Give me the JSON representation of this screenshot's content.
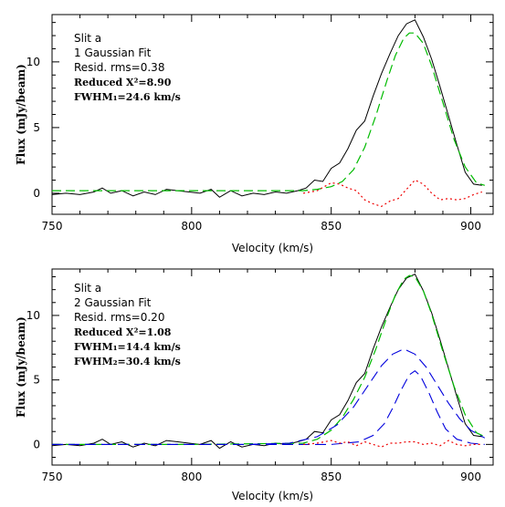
{
  "colors": {
    "data": "#000000",
    "fit_total": "#00bb00",
    "component": "#0000dd",
    "residual": "#ee0000",
    "axis": "#000000"
  },
  "chart_data": [
    {
      "type": "line",
      "xlabel": "Velocity (km/s)",
      "ylabel": "Flux (mJy/beam)",
      "xlim": [
        750,
        908
      ],
      "ylim": [
        -1.6,
        13.6
      ],
      "xticks": [
        750,
        800,
        850,
        900
      ],
      "yticks": [
        0,
        5,
        10
      ],
      "annotations": [
        "Slit a",
        "1 Gaussian Fit",
        "Resid. rms=0.38",
        "Reduced X²=8.90",
        "FWHM₁=24.6 km/s"
      ],
      "series": [
        {
          "style": "data",
          "x": [
            750,
            755,
            760,
            765,
            768,
            771,
            775,
            779,
            783,
            787,
            791,
            795,
            799,
            803,
            807,
            810,
            814,
            818,
            822,
            826,
            830,
            834,
            838,
            841,
            844,
            847,
            850,
            853,
            856,
            859,
            862,
            865,
            868,
            871,
            874,
            877,
            880,
            883,
            886,
            889,
            892,
            895,
            898,
            901,
            904
          ],
          "y": [
            -0.1,
            0.0,
            -0.1,
            0.1,
            0.4,
            0.0,
            0.2,
            -0.2,
            0.1,
            -0.1,
            0.3,
            0.2,
            0.1,
            0.0,
            0.3,
            -0.3,
            0.2,
            -0.2,
            0.0,
            -0.1,
            0.1,
            0.0,
            0.2,
            0.4,
            1.0,
            0.9,
            1.9,
            2.3,
            3.4,
            4.8,
            5.5,
            7.4,
            9.1,
            10.6,
            12.0,
            12.9,
            13.2,
            11.9,
            10.2,
            8.1,
            5.9,
            3.7,
            1.6,
            0.7,
            0.6
          ]
        },
        {
          "style": "fit_total",
          "x": [
            750,
            800,
            840,
            845,
            850,
            854,
            858,
            862,
            866,
            870,
            873,
            876,
            878,
            880,
            883,
            886,
            890,
            894,
            898,
            902,
            905
          ],
          "y": [
            0.2,
            0.2,
            0.2,
            0.3,
            0.5,
            0.9,
            1.8,
            3.5,
            5.9,
            8.6,
            10.5,
            11.8,
            12.2,
            12.2,
            11.4,
            9.7,
            6.9,
            4.1,
            2.0,
            0.8,
            0.6
          ]
        },
        {
          "style": "residual",
          "x": [
            840,
            845,
            850,
            853,
            856,
            859,
            862,
            865,
            868,
            871,
            874,
            877,
            880,
            883,
            886,
            889,
            892,
            895,
            898,
            901,
            904
          ],
          "y": [
            0.0,
            0.2,
            0.8,
            0.7,
            0.4,
            0.2,
            -0.5,
            -0.8,
            -1.0,
            -0.6,
            -0.4,
            0.3,
            1.0,
            0.7,
            0.0,
            -0.5,
            -0.4,
            -0.5,
            -0.4,
            -0.1,
            0.1
          ]
        }
      ]
    },
    {
      "type": "line",
      "xlabel": "Velocity (km/s)",
      "ylabel": "Flux (mJy/beam)",
      "xlim": [
        750,
        908
      ],
      "ylim": [
        -1.6,
        13.6
      ],
      "xticks": [
        750,
        800,
        850,
        900
      ],
      "yticks": [
        0,
        5,
        10
      ],
      "annotations": [
        "Slit a",
        "2 Gaussian Fit",
        "Resid. rms=0.20",
        "Reduced X²=1.08",
        "FWHM₁=14.4 km/s",
        "FWHM₂=30.4 km/s"
      ],
      "series": [
        {
          "style": "data",
          "x": [
            750,
            755,
            760,
            765,
            768,
            771,
            775,
            779,
            783,
            787,
            791,
            795,
            799,
            803,
            807,
            810,
            814,
            818,
            822,
            826,
            830,
            834,
            838,
            841,
            844,
            847,
            850,
            853,
            856,
            859,
            862,
            865,
            868,
            871,
            874,
            877,
            880,
            883,
            886,
            889,
            892,
            895,
            898,
            901,
            904
          ],
          "y": [
            -0.1,
            0.0,
            -0.1,
            0.1,
            0.4,
            0.0,
            0.2,
            -0.2,
            0.1,
            -0.1,
            0.3,
            0.2,
            0.1,
            0.0,
            0.3,
            -0.3,
            0.2,
            -0.2,
            0.0,
            -0.1,
            0.1,
            0.0,
            0.2,
            0.4,
            1.0,
            0.9,
            1.9,
            2.3,
            3.4,
            4.8,
            5.5,
            7.4,
            9.1,
            10.6,
            12.0,
            12.9,
            13.2,
            11.9,
            10.2,
            8.1,
            5.9,
            3.7,
            1.6,
            0.7,
            0.6
          ]
        },
        {
          "style": "fit_total",
          "x": [
            750,
            800,
            840,
            845,
            850,
            854,
            858,
            862,
            866,
            870,
            873,
            876,
            878,
            880,
            883,
            886,
            890,
            894,
            898,
            902,
            905
          ],
          "y": [
            0.0,
            0.0,
            0.1,
            0.4,
            1.1,
            2.1,
            3.5,
            5.2,
            7.4,
            9.9,
            11.6,
            12.8,
            13.1,
            13.0,
            11.9,
            10.1,
            7.2,
            4.5,
            2.3,
            0.9,
            0.6
          ]
        },
        {
          "style": "component_broad",
          "x": [
            750,
            820,
            835,
            845,
            852,
            858,
            863,
            868,
            872,
            876,
            880,
            884,
            888,
            892,
            896,
            900,
            905
          ],
          "y": [
            0.0,
            0.0,
            0.1,
            0.6,
            1.5,
            2.9,
            4.5,
            6.1,
            7.0,
            7.4,
            7.0,
            6.0,
            4.6,
            3.2,
            2.0,
            1.1,
            0.5
          ]
        },
        {
          "style": "component_narrow",
          "x": [
            750,
            850,
            860,
            865,
            869,
            872,
            875,
            878,
            880,
            882,
            885,
            888,
            891,
            895,
            900,
            905
          ],
          "y": [
            0.0,
            0.0,
            0.2,
            0.7,
            1.6,
            2.8,
            4.2,
            5.4,
            5.7,
            5.3,
            4.0,
            2.5,
            1.2,
            0.4,
            0.1,
            0.0
          ]
        },
        {
          "style": "residual",
          "x": [
            840,
            845,
            850,
            853,
            856,
            859,
            862,
            865,
            868,
            871,
            874,
            877,
            880,
            883,
            886,
            889,
            892,
            895,
            898,
            901,
            904
          ],
          "y": [
            0.0,
            0.1,
            0.3,
            0.1,
            0.2,
            -0.1,
            0.2,
            0.0,
            -0.2,
            0.1,
            0.1,
            0.2,
            0.2,
            0.0,
            0.1,
            -0.1,
            0.3,
            0.0,
            -0.1,
            0.0,
            0.0
          ]
        }
      ]
    }
  ]
}
